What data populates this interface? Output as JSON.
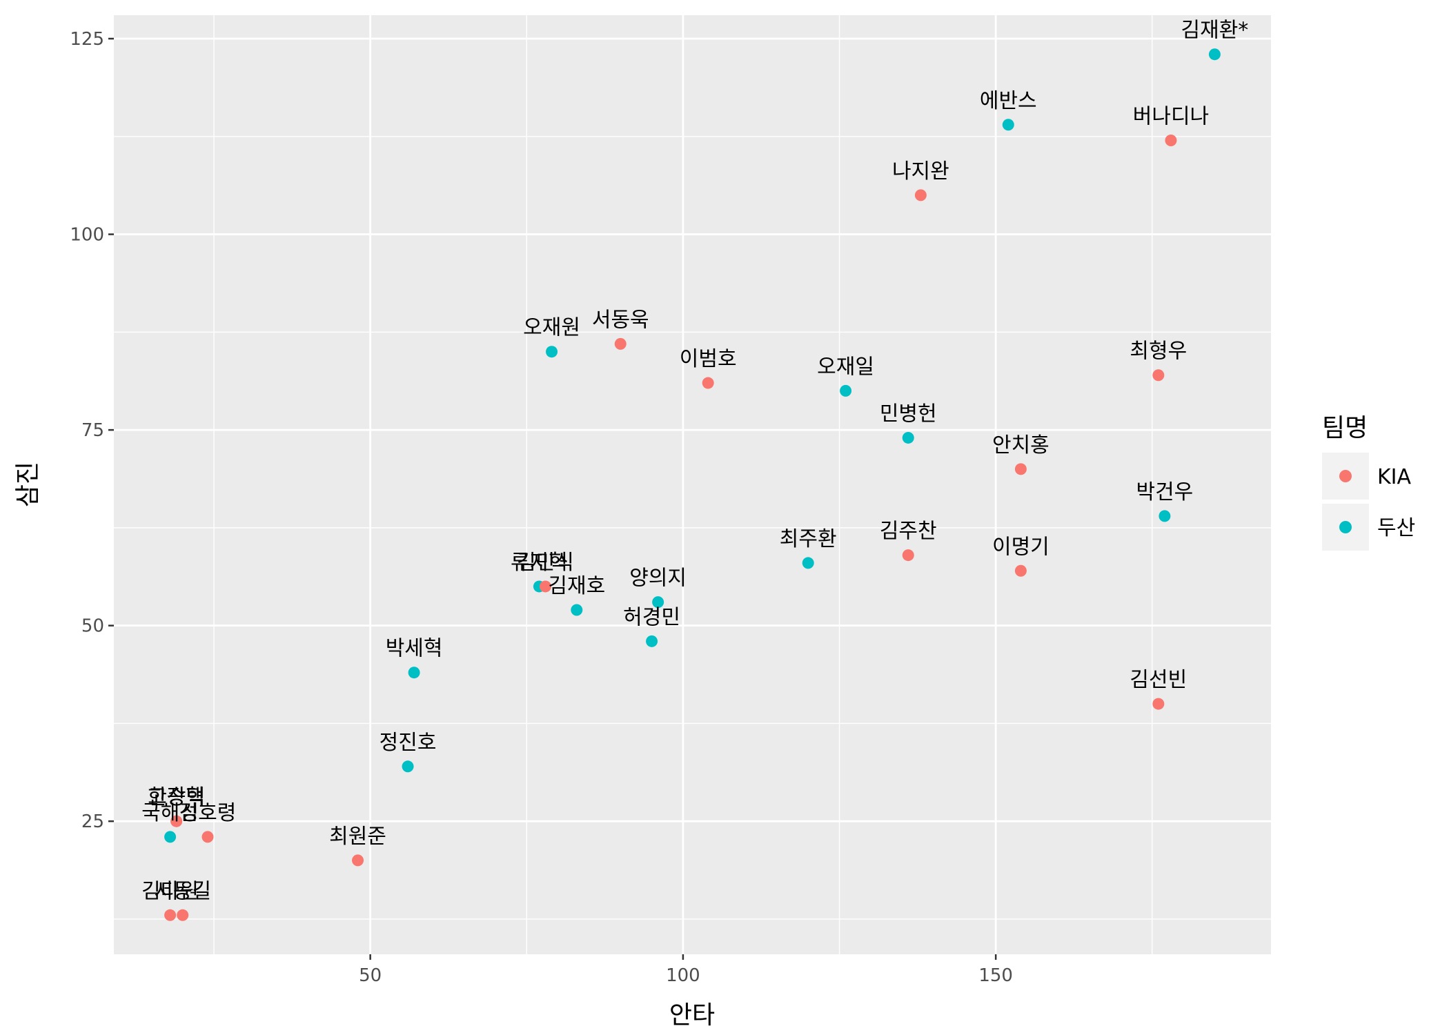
{
  "chart_data": {
    "type": "scatter",
    "xlabel": "안타",
    "ylabel": "삼진",
    "xlim": [
      9,
      194
    ],
    "ylim": [
      8,
      128
    ],
    "x_ticks": [
      50,
      100,
      150
    ],
    "y_ticks": [
      25,
      50,
      75,
      100,
      125
    ],
    "x_tick_labels": [
      "50",
      "100",
      "150"
    ],
    "y_tick_labels": [
      "25",
      "50",
      "75",
      "100",
      "125"
    ],
    "grid": true,
    "legend": {
      "title": "팀명",
      "position": "right",
      "entries": [
        {
          "name": "KIA",
          "color": "#F8766D"
        },
        {
          "name": "두산",
          "color": "#00BFC4"
        }
      ]
    },
    "points": [
      {
        "label": "김재환*",
        "x": 185,
        "y": 123,
        "team": "두산"
      },
      {
        "label": "에반스",
        "x": 152,
        "y": 114,
        "team": "두산"
      },
      {
        "label": "버나디나",
        "x": 178,
        "y": 112,
        "team": "KIA"
      },
      {
        "label": "나지완",
        "x": 138,
        "y": 105,
        "team": "KIA"
      },
      {
        "label": "오재원",
        "x": 79,
        "y": 85,
        "team": "두산"
      },
      {
        "label": "서동욱",
        "x": 90,
        "y": 86,
        "team": "KIA"
      },
      {
        "label": "이범호",
        "x": 104,
        "y": 81,
        "team": "KIA"
      },
      {
        "label": "오재일",
        "x": 126,
        "y": 80,
        "team": "두산"
      },
      {
        "label": "최형우",
        "x": 176,
        "y": 82,
        "team": "KIA"
      },
      {
        "label": "민병헌",
        "x": 136,
        "y": 74,
        "team": "두산"
      },
      {
        "label": "안치홍",
        "x": 154,
        "y": 70,
        "team": "KIA"
      },
      {
        "label": "박건우",
        "x": 177,
        "y": 64,
        "team": "두산"
      },
      {
        "label": "최주환",
        "x": 120,
        "y": 58,
        "team": "두산"
      },
      {
        "label": "김주찬",
        "x": 136,
        "y": 59,
        "team": "KIA"
      },
      {
        "label": "이명기",
        "x": 154,
        "y": 57,
        "team": "KIA"
      },
      {
        "label": "류지혁",
        "x": 77,
        "y": 55,
        "team": "두산"
      },
      {
        "label": "김민식",
        "x": 78,
        "y": 55,
        "team": "KIA"
      },
      {
        "label": "김재호",
        "x": 83,
        "y": 52,
        "team": "두산"
      },
      {
        "label": "양의지",
        "x": 96,
        "y": 53,
        "team": "두산"
      },
      {
        "label": "허경민",
        "x": 95,
        "y": 48,
        "team": "두산"
      },
      {
        "label": "박세혁",
        "x": 57,
        "y": 44,
        "team": "두산"
      },
      {
        "label": "김선빈",
        "x": 176,
        "y": 40,
        "team": "KIA"
      },
      {
        "label": "정진호",
        "x": 56,
        "y": 32,
        "team": "두산"
      },
      {
        "label": "한승택",
        "x": 19,
        "y": 25,
        "team": "KIA"
      },
      {
        "label": "국해성",
        "x": 18,
        "y": 23,
        "team": "두산"
      },
      {
        "label": "고장혁",
        "x": 19,
        "y": 25,
        "team": "KIA"
      },
      {
        "label": "김호령",
        "x": 24,
        "y": 23,
        "team": "KIA"
      },
      {
        "label": "최원준",
        "x": 48,
        "y": 20,
        "team": "KIA"
      },
      {
        "label": "김다원",
        "x": 18,
        "y": 13,
        "team": "KIA"
      },
      {
        "label": "서동길",
        "x": 20,
        "y": 13,
        "team": "KIA"
      }
    ]
  }
}
